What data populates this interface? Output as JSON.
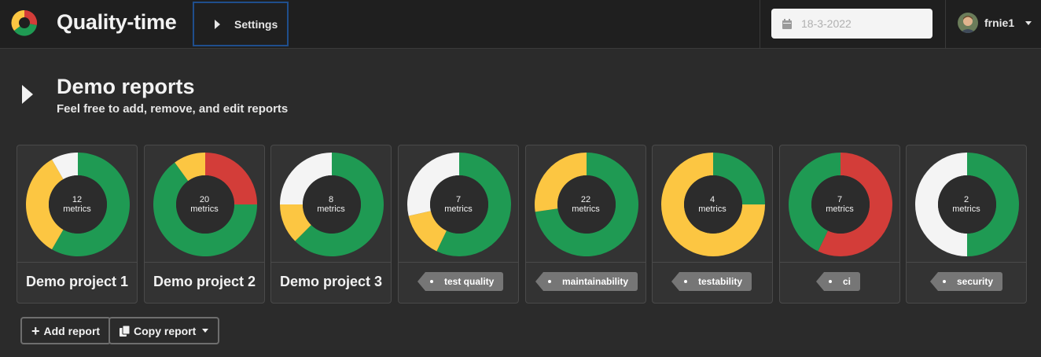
{
  "app": {
    "title": "Quality-time"
  },
  "topbar": {
    "settings_label": "Settings",
    "date_placeholder": "18-3-2022",
    "username": "frnie1"
  },
  "header": {
    "title": "Demo reports",
    "subtitle": "Feel free to add, remove, and edit reports"
  },
  "colors": {
    "green": "#1f9a53",
    "yellow": "#fcc642",
    "red": "#d33d39",
    "white": "#f4f4f4",
    "center": "#2c2c2c"
  },
  "cards": [
    {
      "kind": "report",
      "label": "Demo project 1",
      "count": "12",
      "unit": "metrics",
      "segments": [
        {
          "color": "green",
          "value": 7
        },
        {
          "color": "yellow",
          "value": 4
        },
        {
          "color": "white",
          "value": 1
        }
      ]
    },
    {
      "kind": "report",
      "label": "Demo project 2",
      "count": "20",
      "unit": "metrics",
      "segments": [
        {
          "color": "red",
          "value": 5
        },
        {
          "color": "green",
          "value": 13
        },
        {
          "color": "yellow",
          "value": 2
        }
      ]
    },
    {
      "kind": "report",
      "label": "Demo project 3",
      "count": "8",
      "unit": "metrics",
      "segments": [
        {
          "color": "green",
          "value": 5
        },
        {
          "color": "yellow",
          "value": 1
        },
        {
          "color": "white",
          "value": 2
        }
      ]
    },
    {
      "kind": "tag",
      "label": "test quality",
      "count": "7",
      "unit": "metrics",
      "segments": [
        {
          "color": "green",
          "value": 4
        },
        {
          "color": "yellow",
          "value": 1
        },
        {
          "color": "white",
          "value": 2
        }
      ]
    },
    {
      "kind": "tag",
      "label": "maintainability",
      "count": "22",
      "unit": "metrics",
      "segments": [
        {
          "color": "green",
          "value": 16
        },
        {
          "color": "yellow",
          "value": 6
        }
      ]
    },
    {
      "kind": "tag",
      "label": "testability",
      "count": "4",
      "unit": "metrics",
      "segments": [
        {
          "color": "green",
          "value": 1
        },
        {
          "color": "yellow",
          "value": 3
        }
      ]
    },
    {
      "kind": "tag",
      "label": "ci",
      "count": "7",
      "unit": "metrics",
      "segments": [
        {
          "color": "red",
          "value": 4
        },
        {
          "color": "green",
          "value": 3
        }
      ]
    },
    {
      "kind": "tag",
      "label": "security",
      "count": "2",
      "unit": "metrics",
      "segments": [
        {
          "color": "green",
          "value": 1
        },
        {
          "color": "white",
          "value": 1
        }
      ]
    }
  ],
  "actions": {
    "add_report": "Add report",
    "copy_report": "Copy report"
  }
}
